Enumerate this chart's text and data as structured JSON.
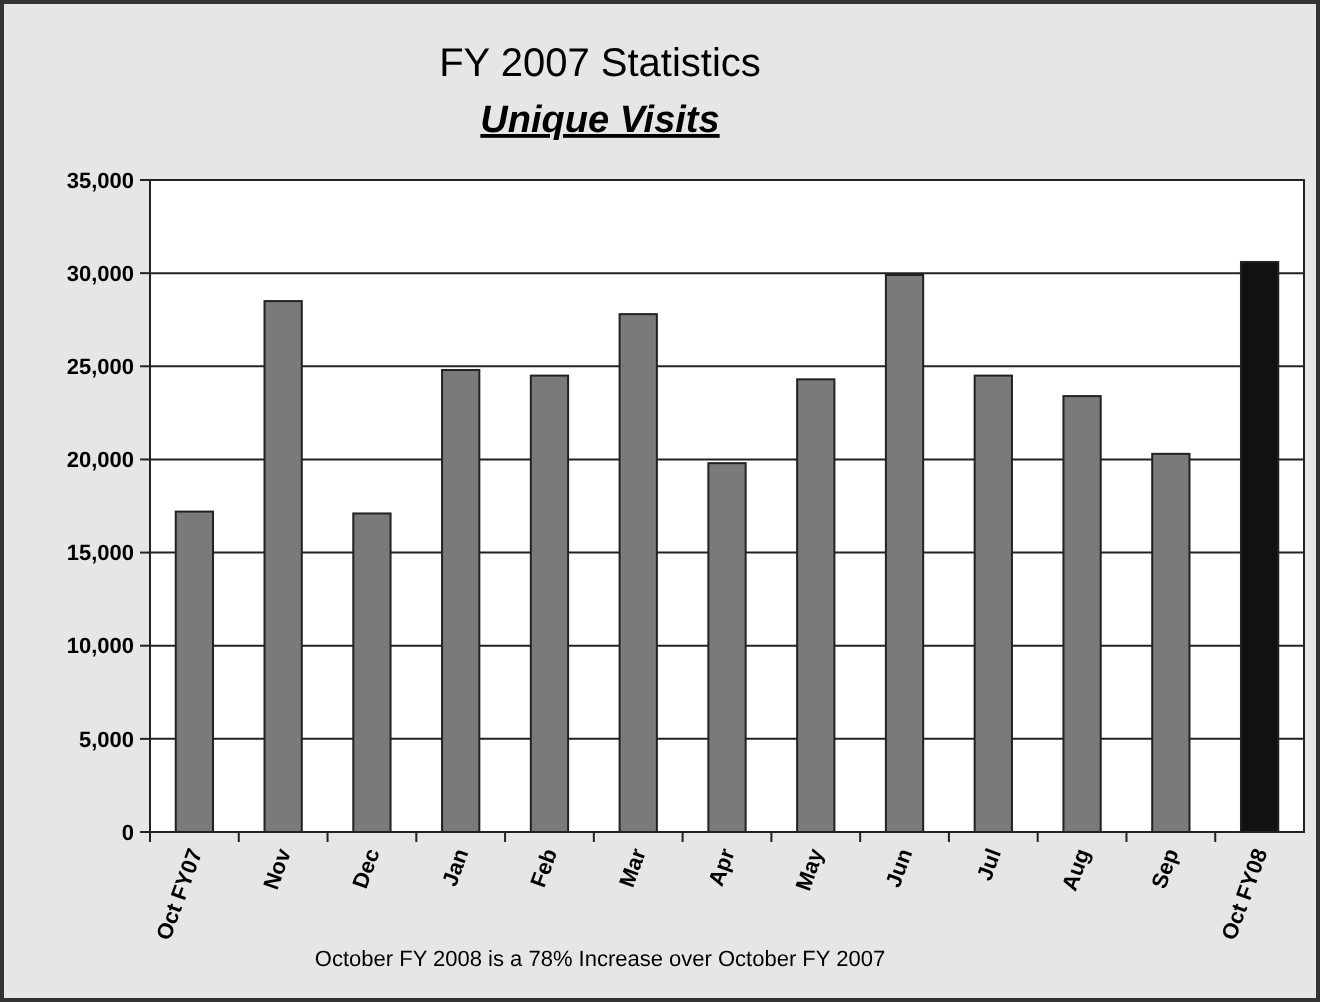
{
  "chart_data": {
    "type": "bar",
    "title": "FY 2007 Statistics",
    "subtitle": "Unique Visits",
    "categories": [
      "Oct FY07",
      "Nov",
      "Dec",
      "Jan",
      "Feb",
      "Mar",
      "Apr",
      "May",
      "Jun",
      "Jul",
      "Aug",
      "Sep",
      "Oct FY08"
    ],
    "values": [
      17200,
      28500,
      17100,
      24800,
      24500,
      27800,
      19800,
      24300,
      29900,
      24500,
      23400,
      20300,
      30600
    ],
    "colors": [
      "#7a7a7a",
      "#7a7a7a",
      "#7a7a7a",
      "#7a7a7a",
      "#7a7a7a",
      "#7a7a7a",
      "#7a7a7a",
      "#7a7a7a",
      "#7a7a7a",
      "#7a7a7a",
      "#7a7a7a",
      "#7a7a7a",
      "#111111"
    ],
    "ylim": [
      0,
      35000
    ],
    "yticks": [
      {
        "value": 0,
        "label": "0"
      },
      {
        "value": 5000,
        "label": "5,000"
      },
      {
        "value": 10000,
        "label": "10,000"
      },
      {
        "value": 15000,
        "label": "15,000"
      },
      {
        "value": 20000,
        "label": "20,000"
      },
      {
        "value": 25000,
        "label": "25,000"
      },
      {
        "value": 30000,
        "label": "30,000"
      },
      {
        "value": 35000,
        "label": "35,000"
      }
    ],
    "grid": "y",
    "annotations": [
      "October FY 2008 is a 78% Increase over October FY 2007"
    ]
  }
}
